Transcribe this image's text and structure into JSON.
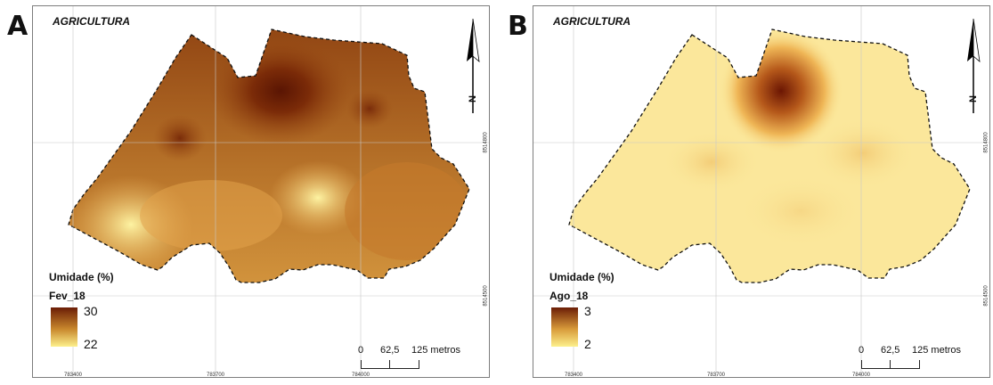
{
  "panels": [
    {
      "letter": "A",
      "theme": "AGRICULTURA",
      "north_label": "N",
      "legend": {
        "title": "Umidade (%)",
        "period": "Fev_18",
        "max": "30",
        "min": "22",
        "color_high": "#6b1d06",
        "color_mid": "#c8872c",
        "color_low": "#fdf08c"
      },
      "scale": {
        "zero": "0",
        "mid": "62,5",
        "end": "125 metros"
      },
      "x_ticks": [
        "783400",
        "783700",
        "784000"
      ],
      "y_ticks": [
        "8514800",
        "8514500"
      ]
    },
    {
      "letter": "B",
      "theme": "AGRICULTURA",
      "north_label": "N",
      "legend": {
        "title": "Umidade (%)",
        "period": "Ago_18",
        "max": "3",
        "min": "2",
        "color_high": "#6b1d06",
        "color_mid": "#d89a3a",
        "color_low": "#fdf08c"
      },
      "scale": {
        "zero": "0",
        "mid": "62,5",
        "end": "125 metros"
      },
      "x_ticks": [
        "783400",
        "783700",
        "784000"
      ],
      "y_ticks": [
        "8514800",
        "8514500"
      ]
    }
  ]
}
